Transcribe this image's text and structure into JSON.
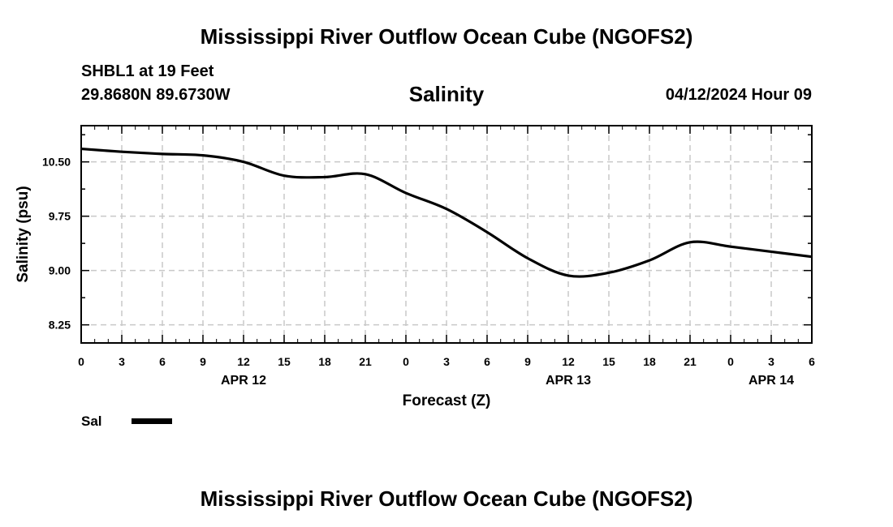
{
  "header": {
    "main_title": "Mississippi River Outflow Ocean Cube (NGOFS2)",
    "station": "SHBL1 at 19 Feet",
    "coords": "29.8680N  89.6730W",
    "chart_title": "Salinity",
    "datetime": "04/12/2024 Hour 09"
  },
  "footer": {
    "title": "Mississippi River Outflow Ocean Cube (NGOFS2)"
  },
  "legend": {
    "label": "Sal",
    "color": "#000000"
  },
  "chart_data": {
    "type": "line",
    "title": "Salinity",
    "xlabel": "Forecast (Z)",
    "ylabel": "Salinity (psu)",
    "xlim": [
      0,
      54
    ],
    "ylim": [
      8.0,
      11.0
    ],
    "y_ticks": [
      8.25,
      9.0,
      9.75,
      10.5
    ],
    "y_tick_labels": [
      "8.25",
      "9.00",
      "9.75",
      "10.50"
    ],
    "x_ticks": [
      0,
      3,
      6,
      9,
      12,
      15,
      18,
      21,
      24,
      27,
      30,
      33,
      36,
      39,
      42,
      45,
      48,
      51,
      54
    ],
    "x_tick_labels": [
      "0",
      "3",
      "6",
      "9",
      "12",
      "15",
      "18",
      "21",
      "0",
      "3",
      "6",
      "9",
      "12",
      "15",
      "18",
      "21",
      "0",
      "3",
      "6"
    ],
    "date_labels": [
      {
        "label": "APR 12",
        "at": 12
      },
      {
        "label": "APR 13",
        "at": 36
      },
      {
        "label": "APR 14",
        "at": 51
      }
    ],
    "grid": true,
    "series": [
      {
        "name": "Sal",
        "x": [
          0,
          3,
          6,
          9,
          12,
          15,
          18,
          21,
          24,
          27,
          30,
          33,
          36,
          39,
          42,
          45,
          48,
          51,
          54
        ],
        "values": [
          10.68,
          10.64,
          10.61,
          10.59,
          10.5,
          10.31,
          10.29,
          10.33,
          10.07,
          9.85,
          9.53,
          9.17,
          8.93,
          8.97,
          9.14,
          9.39,
          9.33,
          9.26,
          9.19
        ]
      }
    ]
  }
}
